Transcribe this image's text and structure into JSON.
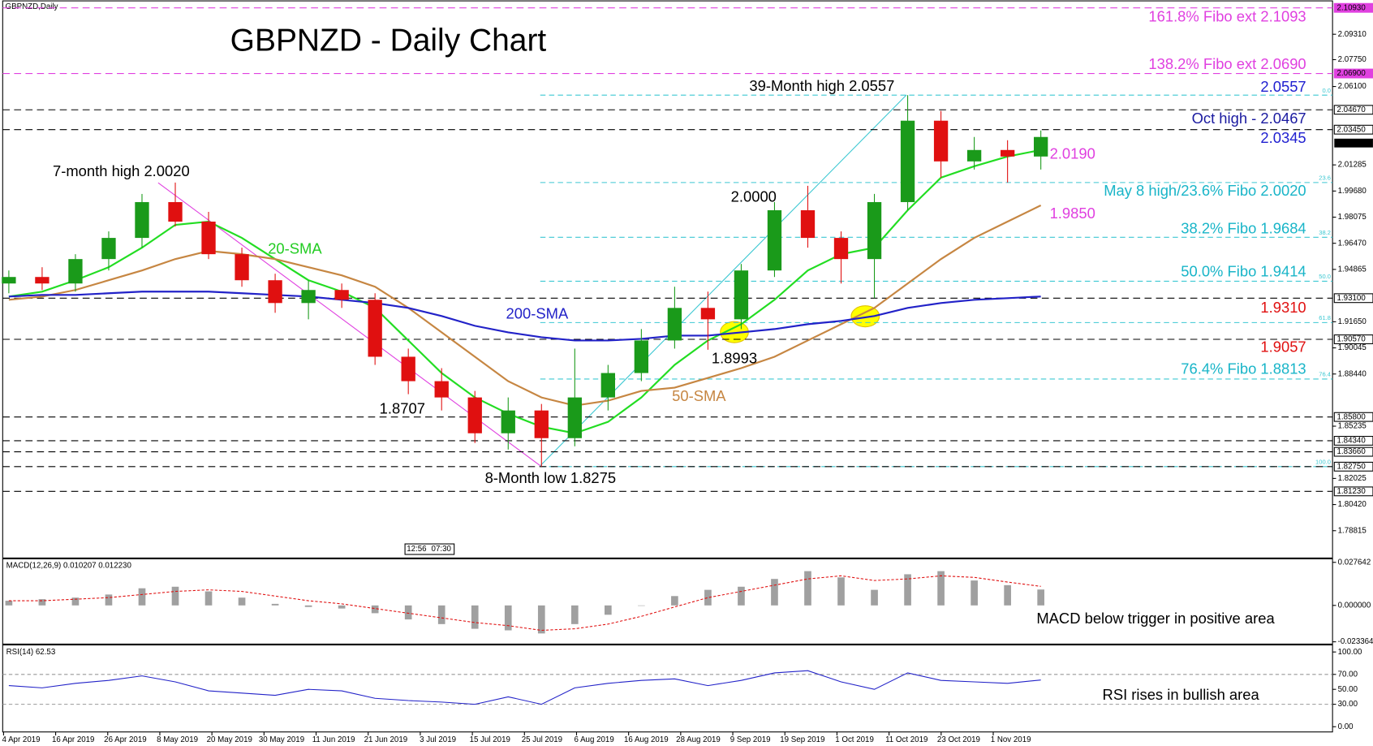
{
  "chart_data": {
    "type": "candlestick",
    "title": "GBPNZD - Daily Chart",
    "symbol": "GBPNZD,Daily",
    "up_color": "#1a9a1a",
    "down_color": "#e01010",
    "ylim": [
      1.7714,
      2.1136
    ],
    "yticks": [
      {
        "value": 2.0931,
        "label": "2.09310"
      },
      {
        "value": 2.0775,
        "label": "2.07750"
      },
      {
        "value": 2.061,
        "label": "2.06100"
      },
      {
        "value": 2.01285,
        "label": "2.01285"
      },
      {
        "value": 1.9968,
        "label": "1.99680"
      },
      {
        "value": 1.98075,
        "label": "1.98075"
      },
      {
        "value": 1.9647,
        "label": "1.96470"
      },
      {
        "value": 1.94865,
        "label": "1.94865"
      },
      {
        "value": 1.9165,
        "label": "1.91650"
      },
      {
        "value": 1.90045,
        "label": "1.90045"
      },
      {
        "value": 1.8844,
        "label": "1.88440"
      },
      {
        "value": 1.85235,
        "label": "1.85235"
      },
      {
        "value": 1.82025,
        "label": "1.82025"
      },
      {
        "value": 1.8042,
        "label": "1.80420"
      },
      {
        "value": 1.78815,
        "label": "1.78815"
      }
    ],
    "xticks": [
      "4 Apr 2019",
      "16 Apr 2019",
      "26 Apr 2019",
      "8 May 2019",
      "20 May 2019",
      "30 May 2019",
      "11 Jun 2019",
      "21 Jun 2019",
      "3 Jul 2019",
      "15 Jul 2019",
      "25 Jul 2019",
      "6 Aug 2019",
      "16 Aug 2019",
      "28 Aug 2019",
      "9 Sep 2019",
      "19 Sep 2019",
      "1 Oct 2019",
      "11 Oct 2019",
      "23 Oct 2019",
      "1 Nov 2019"
    ],
    "candles": [
      [
        1.94,
        1.948,
        1.934,
        1.944
      ],
      [
        1.944,
        1.95,
        1.936,
        1.94
      ],
      [
        1.94,
        1.958,
        1.935,
        1.955
      ],
      [
        1.955,
        1.972,
        1.948,
        1.968
      ],
      [
        1.968,
        1.995,
        1.962,
        1.99
      ],
      [
        1.99,
        2.002,
        1.975,
        1.978
      ],
      [
        1.978,
        1.984,
        1.955,
        1.958
      ],
      [
        1.958,
        1.962,
        1.938,
        1.942
      ],
      [
        1.942,
        1.946,
        1.922,
        1.928
      ],
      [
        1.928,
        1.942,
        1.918,
        1.936
      ],
      [
        1.936,
        1.94,
        1.925,
        1.93
      ],
      [
        1.93,
        1.934,
        1.89,
        1.895
      ],
      [
        1.895,
        1.9,
        1.872,
        1.88
      ],
      [
        1.88,
        1.888,
        1.862,
        1.87
      ],
      [
        1.87,
        1.874,
        1.842,
        1.848
      ],
      [
        1.848,
        1.87,
        1.838,
        1.862
      ],
      [
        1.862,
        1.866,
        1.8275,
        1.845
      ],
      [
        1.845,
        1.9,
        1.84,
        1.87
      ],
      [
        1.87,
        1.89,
        1.862,
        1.885
      ],
      [
        1.885,
        1.912,
        1.88,
        1.905
      ],
      [
        1.905,
        1.938,
        1.9,
        1.925
      ],
      [
        1.925,
        1.935,
        1.8993,
        1.918
      ],
      [
        1.918,
        1.952,
        1.912,
        1.948
      ],
      [
        1.948,
        1.99,
        1.944,
        1.985
      ],
      [
        1.985,
        2.0,
        1.962,
        1.968
      ],
      [
        1.968,
        1.972,
        1.94,
        1.955
      ],
      [
        1.955,
        1.995,
        1.931,
        1.99
      ],
      [
        1.99,
        2.0557,
        1.985,
        2.04
      ],
      [
        2.04,
        2.046,
        2.005,
        2.015
      ],
      [
        2.015,
        2.03,
        2.01,
        2.022
      ],
      [
        2.022,
        2.028,
        2.002,
        2.018
      ],
      [
        2.018,
        2.034,
        2.01,
        2.03
      ]
    ],
    "series": [
      {
        "name": "20-SMA",
        "color": "#22dd22",
        "values": [
          1.932,
          1.935,
          1.942,
          1.95,
          1.962,
          1.976,
          1.978,
          1.968,
          1.955,
          1.942,
          1.935,
          1.925,
          1.905,
          1.885,
          1.87,
          1.86,
          1.852,
          1.848,
          1.855,
          1.87,
          1.89,
          1.905,
          1.915,
          1.93,
          1.948,
          1.958,
          1.962,
          1.985,
          2.005,
          2.012,
          2.018,
          2.022
        ]
      },
      {
        "name": "50-SMA",
        "color": "#c68642",
        "values": [
          1.93,
          1.932,
          1.936,
          1.942,
          1.948,
          1.955,
          1.96,
          1.958,
          1.955,
          1.95,
          1.945,
          1.938,
          1.925,
          1.91,
          1.895,
          1.88,
          1.87,
          1.865,
          1.868,
          1.874,
          1.876,
          1.882,
          1.888,
          1.895,
          1.905,
          1.915,
          1.925,
          1.94,
          1.955,
          1.968,
          1.978,
          1.988
        ]
      },
      {
        "name": "200-SMA",
        "color": "#2222c8",
        "values": [
          1.932,
          1.933,
          1.933,
          1.934,
          1.935,
          1.935,
          1.935,
          1.934,
          1.933,
          1.932,
          1.93,
          1.928,
          1.925,
          1.92,
          1.914,
          1.91,
          1.907,
          1.905,
          1.905,
          1.906,
          1.908,
          1.908,
          1.91,
          1.912,
          1.915,
          1.917,
          1.92,
          1.925,
          1.928,
          1.93,
          1.931,
          1.932
        ]
      }
    ],
    "levels": [
      {
        "value": 2.1093,
        "label": "2.10930",
        "color": "#e040e0"
      },
      {
        "value": 2.069,
        "label": "2.06900",
        "color": "#e040e0"
      },
      {
        "value": 2.0467,
        "label": "2.04670",
        "color": "#000000"
      },
      {
        "value": 2.0345,
        "label": "2.03450",
        "color": "#000000"
      },
      {
        "value": 1.931,
        "label": "1.93100",
        "color": "#000000"
      },
      {
        "value": 1.9057,
        "label": "1.90570",
        "color": "#000000"
      },
      {
        "value": 1.858,
        "label": "1.85800",
        "color": "#000000"
      },
      {
        "value": 1.8434,
        "label": "1.84340",
        "color": "#000000"
      },
      {
        "value": 1.8366,
        "label": "1.83660",
        "color": "#000000"
      },
      {
        "value": 1.8275,
        "label": "1.82750",
        "color": "#000000"
      },
      {
        "value": 1.8123,
        "label": "1.81230",
        "color": "#000000"
      }
    ],
    "last_price": {
      "value": 2.02627,
      "label": "2.02627"
    },
    "fibo": {
      "color": "#3cc8d2",
      "levels": [
        {
          "value": 2.0557,
          "label": "0.0"
        },
        {
          "value": 2.002,
          "label": "23.6"
        },
        {
          "value": 1.9684,
          "label": "38.2"
        },
        {
          "value": 1.9414,
          "label": "50.0"
        },
        {
          "value": 1.916,
          "label": "61.8"
        },
        {
          "value": 1.8813,
          "label": "76.4"
        },
        {
          "value": 1.8275,
          "label": "100.0"
        }
      ]
    },
    "annotations": [
      {
        "text": "7-month high 2.0020",
        "color": "#000000"
      },
      {
        "text": "20-SMA",
        "color": "#22cc22"
      },
      {
        "text": "200-SMA",
        "color": "#2222c8"
      },
      {
        "text": "50-SMA",
        "color": "#c68642"
      },
      {
        "text": "1.8707",
        "color": "#000000"
      },
      {
        "text": "8-Month low 1.8275",
        "color": "#000000"
      },
      {
        "text": "39-Month high 2.0557",
        "color": "#000000"
      },
      {
        "text": "2.0000",
        "color": "#000000"
      },
      {
        "text": "1.8993",
        "color": "#000000"
      },
      {
        "text": "161.8% Fibo ext 2.1093",
        "color": "#e040e0"
      },
      {
        "text": "138.2% Fibo ext 2.0690",
        "color": "#e040e0"
      },
      {
        "text": "2.0557",
        "color": "#1f1fd0"
      },
      {
        "text": "Oct high - 2.0467",
        "color": "#1a1aa0"
      },
      {
        "text": "2.0345",
        "color": "#1f1fd0"
      },
      {
        "text": "2.0190",
        "color": "#e040e0"
      },
      {
        "text": "May 8 high/23.6% Fibo 2.0020",
        "color": "#19b5c8"
      },
      {
        "text": "1.9850",
        "color": "#e040e0"
      },
      {
        "text": "38.2% Fibo 1.9684",
        "color": "#19b5c8"
      },
      {
        "text": "50.0% Fibo 1.9414",
        "color": "#19b5c8"
      },
      {
        "text": "1.9310",
        "color": "#e01010"
      },
      {
        "text": "1.9057",
        "color": "#e01010"
      },
      {
        "text": "76.4% Fibo 1.8813",
        "color": "#19b5c8"
      },
      {
        "text": "MACD below trigger in positive area",
        "color": "#000000"
      },
      {
        "text": "RSI rises in bullish area",
        "color": "#000000"
      }
    ],
    "time_box": [
      "12:56",
      "07:30"
    ],
    "macd": {
      "title": "MACD(12,26,9) 0.010207 0.012230",
      "ylim": [
        -0.02482,
        0.0299
      ],
      "yticks": [
        {
          "value": 0.027642,
          "label": "0.027642"
        },
        {
          "value": 0,
          "label": "0.000000"
        },
        {
          "value": -0.023364,
          "label": "-0.023364"
        }
      ],
      "histogram": [
        0.003,
        0.004,
        0.005,
        0.007,
        0.011,
        0.012,
        0.009,
        0.005,
        0.001,
        -0.001,
        -0.002,
        -0.005,
        -0.009,
        -0.012,
        -0.015,
        -0.016,
        -0.018,
        -0.012,
        -0.006,
        0,
        0.006,
        0.01,
        0.012,
        0.017,
        0.022,
        0.018,
        0.01,
        0.02,
        0.022,
        0.016,
        0.013,
        0.010207
      ],
      "signal": [
        0.003,
        0.003,
        0.004,
        0.005,
        0.007,
        0.009,
        0.01,
        0.009,
        0.006,
        0.003,
        0.001,
        -0.002,
        -0.005,
        -0.008,
        -0.011,
        -0.013,
        -0.016,
        -0.015,
        -0.012,
        -0.007,
        -0.001,
        0.005,
        0.009,
        0.013,
        0.017,
        0.019,
        0.016,
        0.017,
        0.019,
        0.018,
        0.015,
        0.01223
      ],
      "hist_color": "#a0a0a0",
      "signal_color": "#e01010"
    },
    "rsi": {
      "title": "RSI(14) 62.53",
      "ylim": [
        -7,
        109.4
      ],
      "color": "#2222c8",
      "levels": [
        70,
        30
      ],
      "yticks": [
        {
          "value": 100,
          "label": "100.00"
        },
        {
          "value": 70,
          "label": "70.00"
        },
        {
          "value": 50,
          "label": "50.00"
        },
        {
          "value": 30,
          "label": "30.00"
        },
        {
          "value": 0,
          "label": "0.00"
        }
      ],
      "values": [
        55,
        52,
        58,
        62,
        68,
        60,
        48,
        45,
        42,
        50,
        48,
        38,
        35,
        33,
        30,
        40,
        30,
        52,
        58,
        62,
        64,
        55,
        62,
        72,
        75,
        60,
        50,
        72,
        62,
        60,
        58,
        62.53
      ]
    }
  }
}
